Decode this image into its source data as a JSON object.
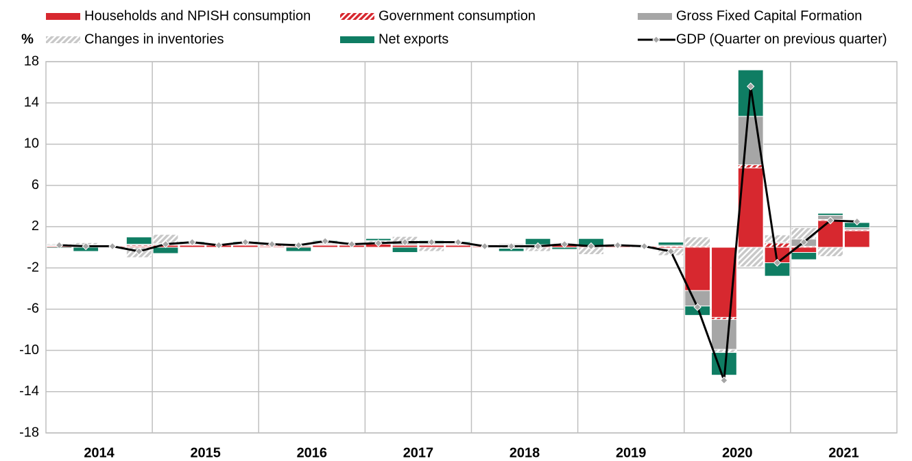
{
  "chart_data": {
    "type": "bar",
    "stacked": true,
    "y_label": "%",
    "categories": [
      null,
      null,
      null,
      null,
      null,
      null,
      null,
      null,
      null,
      null,
      null,
      null,
      null,
      null,
      null,
      null,
      null,
      null,
      null,
      null,
      null,
      null,
      null,
      null,
      null,
      null,
      null,
      null,
      null,
      null,
      null,
      null
    ],
    "year_labels": [
      "2014",
      "2015",
      "2016",
      "2017",
      "2018",
      "2019",
      "2020",
      "2021"
    ],
    "ylim": [
      -18,
      18
    ],
    "yticks": [
      -18,
      -14,
      -10,
      -6,
      -2,
      2,
      6,
      10,
      14,
      18
    ],
    "grid": true,
    "series": [
      {
        "name": "Households and NPISH consumption",
        "color": "#d7282f",
        "hatch": false,
        "values": [
          0.1,
          0.1,
          0.1,
          0.1,
          0.2,
          0.2,
          0.2,
          0.2,
          0.1,
          0.1,
          0.2,
          0.2,
          0.3,
          0.2,
          0.2,
          0.2,
          0.1,
          0.2,
          0.1,
          0.2,
          0.1,
          0.1,
          0.1,
          -0.1,
          -4.2,
          -6.8,
          7.7,
          -1.5,
          -0.5,
          2.6,
          1.6,
          null
        ]
      },
      {
        "name": "Government consumption",
        "color": "#d7282f",
        "hatch": true,
        "values": [
          0.05,
          0.05,
          0.05,
          0.1,
          0.05,
          0.05,
          0.05,
          0.05,
          0.1,
          0.05,
          0.05,
          0.05,
          0.05,
          0.05,
          0.05,
          0.05,
          0.05,
          0.05,
          0.05,
          0.05,
          0.05,
          0.05,
          0.05,
          0.1,
          0.1,
          -0.2,
          0.3,
          0.4,
          0.1,
          0.1,
          0.1,
          null
        ]
      },
      {
        "name": "Gross Fixed Capital Formation",
        "color": "#a6a6a6",
        "hatch": false,
        "values": [
          0.1,
          0.1,
          0.0,
          0.1,
          0.1,
          0.1,
          0.0,
          0.1,
          0.1,
          0.1,
          0.1,
          0.1,
          0.1,
          0.2,
          0.1,
          0.1,
          0.1,
          0.1,
          0.1,
          0.1,
          0.0,
          0.1,
          0.0,
          0.1,
          -1.5,
          -2.9,
          4.7,
          0.1,
          0.7,
          0.4,
          0.2,
          null
        ]
      },
      {
        "name": "Changes in inventories",
        "color": "#c8c8c8",
        "hatch": true,
        "values": [
          0.1,
          0.2,
          0.0,
          -1.0,
          0.9,
          0.1,
          0.0,
          0.1,
          0.1,
          0.1,
          0.2,
          0.0,
          0.2,
          0.6,
          -0.4,
          0.1,
          0.0,
          -0.1,
          -0.4,
          0.1,
          -0.7,
          0.0,
          0.0,
          -0.7,
          0.9,
          -0.3,
          -1.9,
          0.7,
          1.1,
          -0.9,
          0.0,
          null
        ]
      },
      {
        "name": "Net exports",
        "color": "#0f7d63",
        "hatch": false,
        "values": [
          -0.1,
          -0.4,
          0.0,
          0.7,
          -0.6,
          0.1,
          0.0,
          0.1,
          0.0,
          -0.4,
          0.1,
          0.0,
          0.2,
          -0.5,
          0.3,
          0.1,
          0.0,
          -0.3,
          0.6,
          -0.2,
          0.7,
          0.0,
          0.0,
          0.3,
          -0.9,
          -2.2,
          4.5,
          -1.3,
          -0.7,
          0.2,
          0.5,
          null
        ]
      },
      {
        "name": "GDP (Quarter on previous quarter)",
        "color": "#000000",
        "marker_color": "#a6a6a6",
        "type": "line",
        "values": [
          0.2,
          0.1,
          0.1,
          -0.4,
          0.3,
          0.5,
          0.2,
          0.5,
          0.3,
          0.2,
          0.6,
          0.3,
          0.4,
          0.5,
          0.5,
          0.5,
          0.1,
          0.1,
          0.1,
          0.3,
          0.1,
          0.2,
          0.1,
          -0.4,
          -5.8,
          -12.9,
          15.6,
          -1.5,
          0.5,
          2.6,
          2.5,
          null
        ]
      }
    ]
  }
}
